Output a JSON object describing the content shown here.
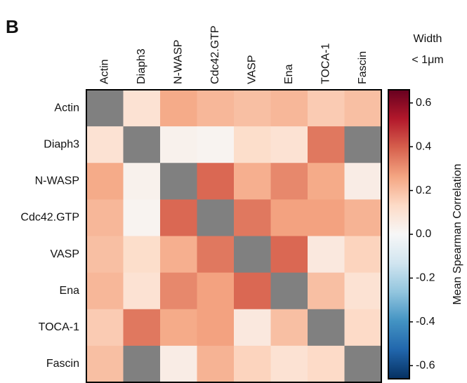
{
  "chart_data": {
    "type": "heatmap",
    "panel_label": "B",
    "x_categories": [
      "Actin",
      "Diaph3",
      "N-WASP",
      "Cdc42.GTP",
      "VASP",
      "Ena",
      "TOCA-1",
      "Fascin"
    ],
    "y_categories": [
      "Actin",
      "Diaph3",
      "N-WASP",
      "Cdc42.GTP",
      "VASP",
      "Ena",
      "TOCA-1",
      "Fascin"
    ],
    "values": [
      [
        null,
        0.1,
        0.25,
        0.22,
        0.2,
        0.22,
        0.17,
        0.2
      ],
      [
        0.1,
        null,
        0.03,
        0.02,
        0.12,
        0.1,
        0.35,
        null
      ],
      [
        0.25,
        0.03,
        null,
        0.38,
        0.24,
        0.32,
        0.25,
        0.05
      ],
      [
        0.22,
        0.02,
        0.38,
        null,
        0.35,
        0.27,
        0.27,
        0.23
      ],
      [
        0.2,
        0.12,
        0.24,
        0.35,
        null,
        0.38,
        0.07,
        0.15
      ],
      [
        0.22,
        0.1,
        0.32,
        0.27,
        0.38,
        null,
        0.2,
        0.1
      ],
      [
        0.17,
        0.35,
        0.25,
        0.27,
        0.07,
        0.2,
        null,
        0.13
      ],
      [
        0.2,
        null,
        0.05,
        0.23,
        0.15,
        0.1,
        0.13,
        null
      ]
    ],
    "missing_color": "#808080",
    "colorscale": [
      "#053061",
      "#2166ac",
      "#4393c3",
      "#92c5de",
      "#d1e5f0",
      "#f7f7f7",
      "#fddbc7",
      "#f4a582",
      "#d6604d",
      "#b2182b",
      "#67001f"
    ],
    "zlim": [
      -0.66,
      0.66
    ],
    "colorbar_ticks": [
      -0.6,
      -0.4,
      -0.2,
      {
        "value": 0,
        "label": "0.0"
      },
      0.2,
      0.4,
      0.6
    ],
    "colorbar_title": [
      "Width",
      "< 1μm"
    ],
    "colorbar_label": "Mean Spearman Correlation"
  }
}
